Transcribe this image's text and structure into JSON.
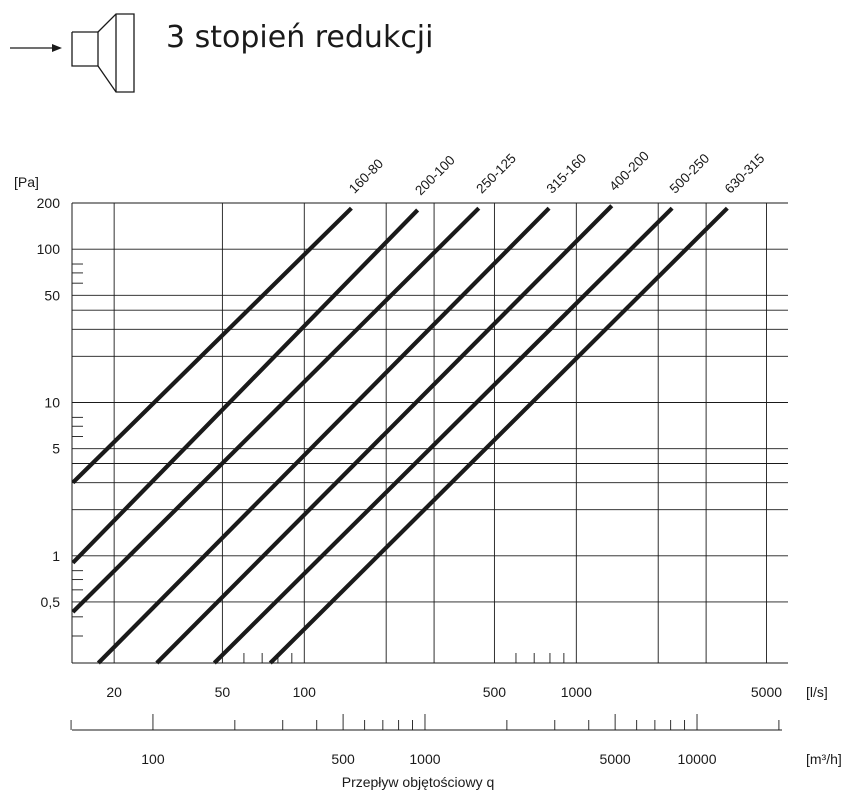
{
  "header": {
    "title": "3 stopień redukcji",
    "icon": "reducer-fitting-icon"
  },
  "chart_data": {
    "type": "line",
    "title": "3 stopień redukcji",
    "ylabel": "[Pa]",
    "xlabel": "Przepływ objętościowy q",
    "x_unit": "[l/s]",
    "x2_unit": "[m³/h]",
    "x_scale": "log",
    "y_scale": "log",
    "xlim": [
      14,
      6000
    ],
    "ylim": [
      0.2,
      200
    ],
    "grid": true,
    "y_ticks": [
      {
        "value": 200,
        "label": "200"
      },
      {
        "value": 100,
        "label": "100"
      },
      {
        "value": 50,
        "label": "50"
      },
      {
        "value": 10,
        "label": "10"
      },
      {
        "value": 5,
        "label": "5"
      },
      {
        "value": 1,
        "label": "1"
      },
      {
        "value": 0.5,
        "label": "0,5"
      }
    ],
    "x_ticks": [
      {
        "value": 20,
        "label": "20"
      },
      {
        "value": 50,
        "label": "50"
      },
      {
        "value": 100,
        "label": "100"
      },
      {
        "value": 500,
        "label": "500"
      },
      {
        "value": 1000,
        "label": "1000"
      },
      {
        "value": 5000,
        "label": "5000"
      }
    ],
    "x2_ticks": [
      {
        "value": 100,
        "label": "100"
      },
      {
        "value": 500,
        "label": "500"
      },
      {
        "value": 1000,
        "label": "1000"
      },
      {
        "value": 5000,
        "label": "5000"
      },
      {
        "value": 10000,
        "label": "10000"
      }
    ],
    "series": [
      {
        "name": "160-80",
        "points": [
          [
            14.1,
            3.0
          ],
          [
            149,
            185
          ]
        ]
      },
      {
        "name": "200-100",
        "points": [
          [
            14.1,
            0.9
          ],
          [
            261,
            180
          ]
        ]
      },
      {
        "name": "250-125",
        "points": [
          [
            14.1,
            0.43
          ],
          [
            438,
            185
          ]
        ]
      },
      {
        "name": "315-160",
        "points": [
          [
            17.5,
            0.2
          ],
          [
            794,
            185
          ]
        ]
      },
      {
        "name": "400-200",
        "points": [
          [
            28.7,
            0.2
          ],
          [
            1350,
            192
          ]
        ]
      },
      {
        "name": "500-250",
        "points": [
          [
            46.7,
            0.2
          ],
          [
            2250,
            185
          ]
        ]
      },
      {
        "name": "630-315",
        "points": [
          [
            75,
            0.2
          ],
          [
            3590,
            185
          ]
        ]
      }
    ]
  }
}
